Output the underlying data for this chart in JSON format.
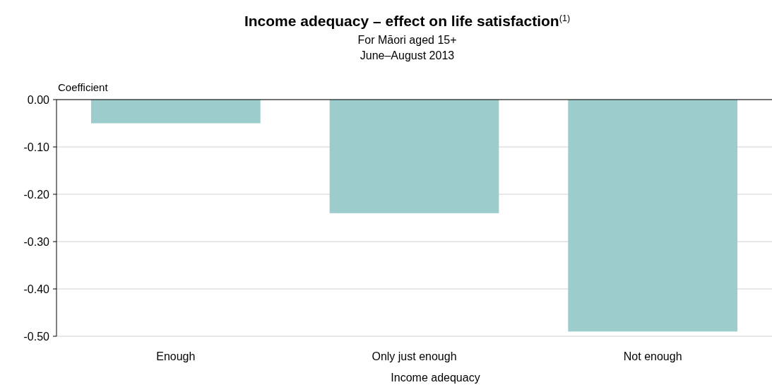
{
  "chart_data": {
    "type": "bar",
    "title": "Income adequacy – effect on life satisfaction$^{(1)}$",
    "subtitle": "For Māori aged 15+\nJune–August 2013",
    "xlabel": "Income adequacy",
    "ylabel": "Coefficient",
    "categories": [
      "Enough",
      "Only just enough",
      "Not enough"
    ],
    "values": [
      -0.05,
      -0.24,
      -0.49
    ],
    "color": "#9dcccd",
    "ylim": [
      -0.5,
      0
    ],
    "yticks": [
      {
        "value": 0,
        "label": "0.00"
      },
      {
        "value": -0.1,
        "label": "-0.10"
      },
      {
        "value": -0.2,
        "label": "-0.20"
      },
      {
        "value": -0.3,
        "label": "-0.30"
      },
      {
        "value": -0.4,
        "label": "-0.40"
      },
      {
        "value": -0.5,
        "label": "-0.50"
      }
    ],
    "grid": "y"
  }
}
